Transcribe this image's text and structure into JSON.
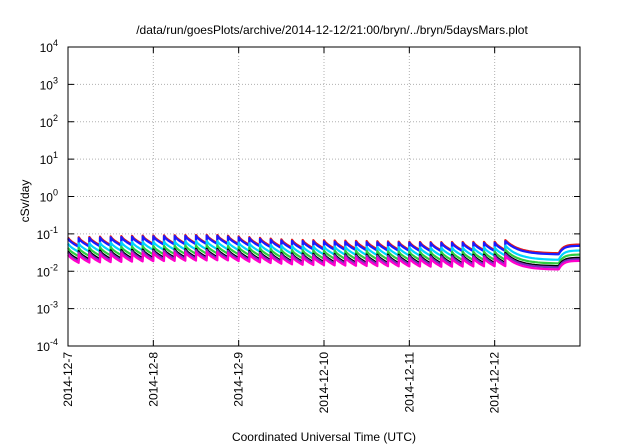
{
  "chart_data": {
    "type": "line",
    "title": "/data/run/goesPlots/archive/2014-12-12/21:00/bryn/../bryn/5daysMars.plot",
    "xlabel": "Coordinated Universal Time (UTC)",
    "ylabel": "cSv/day",
    "yscale": "log",
    "ylim": [
      0.0001,
      10000
    ],
    "y_ticks": [
      {
        "value": 0.0001,
        "base": "10",
        "exp": "-4"
      },
      {
        "value": 0.001,
        "base": "10",
        "exp": "-3"
      },
      {
        "value": 0.01,
        "base": "10",
        "exp": "-2"
      },
      {
        "value": 0.1,
        "base": "10",
        "exp": "-1"
      },
      {
        "value": 1,
        "base": "10",
        "exp": "0"
      },
      {
        "value": 10,
        "base": "10",
        "exp": "1"
      },
      {
        "value": 100,
        "base": "10",
        "exp": "2"
      },
      {
        "value": 1000,
        "base": "10",
        "exp": "3"
      },
      {
        "value": 10000,
        "base": "10",
        "exp": "4"
      }
    ],
    "xlim": [
      "2014-12-07",
      "2014-12-13"
    ],
    "x_ticks": [
      "2014-12-7",
      "2014-12-8",
      "2014-12-9",
      "2014-12-10",
      "2014-12-11",
      "2014-12-12"
    ],
    "grid": true,
    "x_pattern": {
      "start": "2014-12-07T00:00",
      "sawtooth_period_hours": 3,
      "sawtooth_end": "2014-12-12T03:00",
      "sawtooth_decay_factor": 0.6,
      "decay_end": "2014-12-12T18:00",
      "end": "2014-12-13T00:00"
    },
    "series": [
      {
        "color": "#e41a1c",
        "peak_values": [
          0.08,
          0.09,
          0.095,
          0.07,
          0.065,
          0.06,
          0.062
        ],
        "tail_values": [
          0.03,
          0.052
        ]
      },
      {
        "color": "#1a1aff",
        "peak_values": [
          0.075,
          0.085,
          0.09,
          0.065,
          0.06,
          0.057,
          0.058
        ],
        "tail_values": [
          0.028,
          0.048
        ]
      },
      {
        "color": "#00d4ff",
        "peak_values": [
          0.055,
          0.062,
          0.065,
          0.048,
          0.045,
          0.043,
          0.044
        ],
        "tail_values": [
          0.02,
          0.036
        ]
      },
      {
        "color": "#2ecc40",
        "peak_values": [
          0.042,
          0.047,
          0.05,
          0.037,
          0.035,
          0.033,
          0.034
        ],
        "tail_values": [
          0.016,
          0.028
        ]
      },
      {
        "color": "#000000",
        "peak_values": [
          0.034,
          0.038,
          0.04,
          0.03,
          0.028,
          0.027,
          0.028
        ],
        "tail_values": [
          0.0135,
          0.023
        ]
      },
      {
        "color": "#7b2fbe",
        "peak_values": [
          0.031,
          0.035,
          0.037,
          0.028,
          0.026,
          0.025,
          0.026
        ],
        "tail_values": [
          0.0125,
          0.021
        ]
      },
      {
        "color": "#ff00cc",
        "peak_values": [
          0.028,
          0.031,
          0.033,
          0.025,
          0.023,
          0.022,
          0.023
        ],
        "tail_values": [
          0.011,
          0.019
        ]
      }
    ]
  }
}
